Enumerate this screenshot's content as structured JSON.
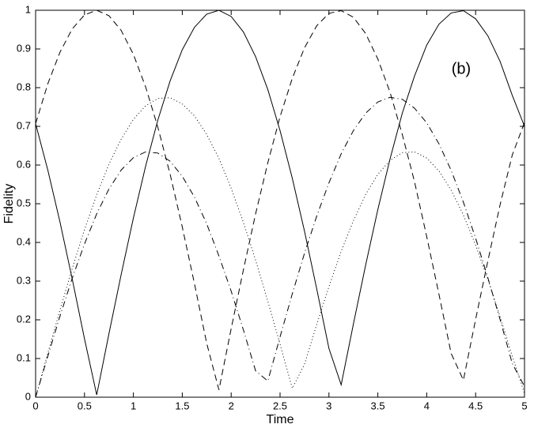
{
  "chart_data": {
    "type": "line",
    "x_label": "Time",
    "y_label": "Fidelity",
    "annotation": "(b)",
    "x": [
      0,
      0.125,
      0.25,
      0.375,
      0.5,
      0.625,
      0.75,
      0.875,
      1,
      1.125,
      1.25,
      1.375,
      1.5,
      1.625,
      1.75,
      1.875,
      2,
      2.125,
      2.25,
      2.375,
      2.5,
      2.625,
      2.75,
      2.875,
      3,
      3.125,
      3.25,
      3.375,
      3.5,
      3.625,
      3.75,
      3.875,
      4,
      4.125,
      4.25,
      4.375,
      4.5,
      4.625,
      4.75,
      4.875,
      5
    ],
    "series": [
      {
        "color": "#000000",
        "dash": "solid",
        "values": [
          0.707,
          0.587,
          0.452,
          0.305,
          0.151,
          0.006,
          0.164,
          0.317,
          0.463,
          0.597,
          0.716,
          0.817,
          0.898,
          0.956,
          0.99,
          1.0,
          0.984,
          0.944,
          0.88,
          0.795,
          0.689,
          0.566,
          0.429,
          0.28,
          0.126,
          0.032,
          0.189,
          0.341,
          0.485,
          0.616,
          0.734,
          0.83,
          0.91,
          0.964,
          0.993,
          0.999,
          0.978,
          0.934,
          0.868,
          0.78,
          0.7
        ]
      },
      {
        "color": "#000000",
        "dash": "dashed",
        "values": [
          0.707,
          0.81,
          0.892,
          0.952,
          0.988,
          1.0,
          0.986,
          0.948,
          0.886,
          0.802,
          0.698,
          0.577,
          0.44,
          0.293,
          0.139,
          0.019,
          0.177,
          0.329,
          0.474,
          0.606,
          0.725,
          0.824,
          0.903,
          0.96,
          0.992,
          0.999,
          0.982,
          0.94,
          0.874,
          0.788,
          0.679,
          0.557,
          0.415,
          0.266,
          0.113,
          0.044,
          0.201,
          0.352,
          0.497,
          0.626,
          0.71
        ]
      },
      {
        "color": "#000000",
        "dash": "dotted",
        "values": [
          0,
          0.114,
          0.226,
          0.333,
          0.433,
          0.523,
          0.602,
          0.667,
          0.718,
          0.753,
          0.772,
          0.774,
          0.758,
          0.727,
          0.679,
          0.617,
          0.54,
          0.452,
          0.354,
          0.248,
          0.137,
          0.023,
          0.085,
          0.188,
          0.286,
          0.377,
          0.456,
          0.524,
          0.576,
          0.612,
          0.632,
          0.634,
          0.618,
          0.585,
          0.535,
          0.471,
          0.393,
          0.305,
          0.208,
          0.106,
          0.01
        ]
      },
      {
        "color": "#000000",
        "dash": "dashdot",
        "values": [
          0,
          0.106,
          0.21,
          0.308,
          0.396,
          0.474,
          0.538,
          0.587,
          0.619,
          0.634,
          0.631,
          0.61,
          0.571,
          0.517,
          0.448,
          0.365,
          0.274,
          0.174,
          0.068,
          0.042,
          0.156,
          0.267,
          0.372,
          0.468,
          0.554,
          0.629,
          0.689,
          0.734,
          0.763,
          0.775,
          0.77,
          0.747,
          0.709,
          0.655,
          0.586,
          0.504,
          0.411,
          0.309,
          0.201,
          0.087,
          0.028
        ]
      }
    ],
    "xlim": [
      0,
      5
    ],
    "ylim": [
      0,
      1
    ],
    "xticks": [
      0,
      0.5,
      1,
      1.5,
      2,
      2.5,
      3,
      3.5,
      4,
      4.5,
      5
    ],
    "yticks": [
      0,
      0.1,
      0.2,
      0.3,
      0.4,
      0.5,
      0.6,
      0.7,
      0.8,
      0.9,
      1
    ],
    "grid": false
  }
}
